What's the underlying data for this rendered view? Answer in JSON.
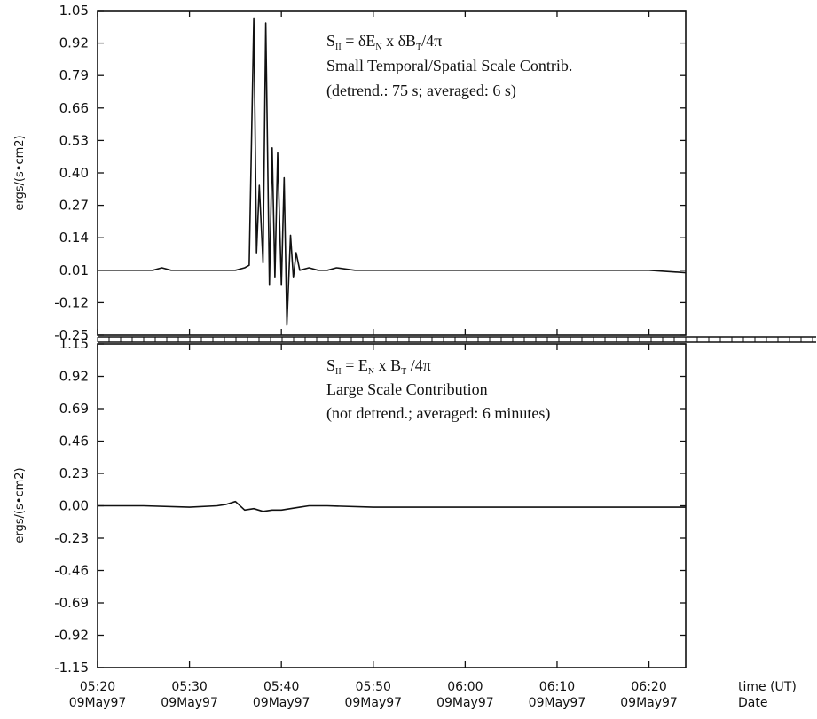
{
  "chart_data": [
    {
      "type": "line",
      "ylabel": "ergs/(s•cm2)",
      "ylim": [
        -0.25,
        1.05
      ],
      "yticks": [
        -0.25,
        -0.12,
        0.01,
        0.14,
        0.27,
        0.4,
        0.53,
        0.66,
        0.79,
        0.92,
        1.05
      ],
      "ytick_labels": [
        "-0.25",
        "-0.12",
        "0.01",
        "0.14",
        "0.27",
        "0.40",
        "0.53",
        "0.66",
        "0.79",
        "0.92",
        "1.05"
      ],
      "annotation": {
        "line1_main": "S",
        "line1_sub": "II",
        "line1_rest": " = δE",
        "line1_sub2": "N",
        "line1_rest2": " x δB",
        "line1_sub3": "T",
        "line1_end": "/4π",
        "line2": "Small Temporal/Spatial Scale Contrib.",
        "line3": "(detrend.: 75 s; averaged: 6 s)"
      },
      "series": [
        {
          "x": [
            "05:20",
            "05:22",
            "05:24",
            "05:26",
            "05:27",
            "05:28",
            "05:30",
            "05:32",
            "05:34",
            "05:35",
            "05:36",
            "05:36.5",
            "05:37",
            "05:37.3",
            "05:37.6",
            "05:38",
            "05:38.3",
            "05:38.7",
            "05:39",
            "05:39.3",
            "05:39.6",
            "05:40",
            "05:40.3",
            "05:40.6",
            "05:41",
            "05:41.3",
            "05:41.6",
            "05:42",
            "05:43",
            "05:44",
            "05:45",
            "05:46",
            "05:48",
            "05:50",
            "05:55",
            "06:00",
            "06:05",
            "06:10",
            "06:15",
            "06:20",
            "06:24"
          ],
          "values": [
            0.01,
            0.01,
            0.01,
            0.01,
            0.02,
            0.01,
            0.01,
            0.01,
            0.01,
            0.01,
            0.02,
            0.03,
            1.02,
            0.08,
            0.35,
            0.04,
            1.0,
            -0.05,
            0.5,
            -0.02,
            0.48,
            -0.05,
            0.38,
            -0.21,
            0.15,
            -0.02,
            0.08,
            0.01,
            0.02,
            0.01,
            0.01,
            0.02,
            0.01,
            0.01,
            0.01,
            0.01,
            0.01,
            0.01,
            0.01,
            0.01,
            0.0
          ]
        }
      ]
    },
    {
      "type": "line",
      "ylabel": "ergs/(s•cm2)",
      "ylim": [
        -1.15,
        1.15
      ],
      "yticks": [
        -1.15,
        -0.92,
        -0.69,
        -0.46,
        -0.23,
        0.0,
        0.23,
        0.46,
        0.69,
        0.92,
        1.15
      ],
      "ytick_labels": [
        "-1.15",
        "-0.92",
        "-0.69",
        "-0.46",
        "-0.23",
        "0.00",
        "0.23",
        "0.46",
        "0.69",
        "0.92",
        "1.15"
      ],
      "annotation": {
        "line1_main": "S",
        "line1_sub": "II",
        "line1_rest": " = E",
        "line1_sub2": "N",
        "line1_rest2": " x B",
        "line1_sub3": "T",
        "line1_end": " /4π",
        "line2": "Large Scale Contribution",
        "line3": "(not detrend.; averaged: 6 minutes)"
      },
      "series": [
        {
          "x": [
            "05:20",
            "05:25",
            "05:30",
            "05:33",
            "05:34",
            "05:35",
            "05:36",
            "05:37",
            "05:38",
            "05:39",
            "05:40",
            "05:41",
            "05:42",
            "05:43",
            "05:45",
            "05:50",
            "05:55",
            "06:00",
            "06:10",
            "06:20",
            "06:24"
          ],
          "values": [
            0.0,
            0.0,
            -0.01,
            0.0,
            0.01,
            0.03,
            -0.03,
            -0.02,
            -0.04,
            -0.03,
            -0.03,
            -0.02,
            -0.01,
            0.0,
            0.0,
            -0.01,
            -0.01,
            -0.01,
            -0.01,
            -0.01,
            -0.01
          ]
        }
      ]
    }
  ],
  "x_axis": {
    "xlim": [
      "05:20",
      "06:24"
    ],
    "ticks": [
      {
        "time": "05:20",
        "date": "09May97"
      },
      {
        "time": "05:30",
        "date": "09May97"
      },
      {
        "time": "05:40",
        "date": "09May97"
      },
      {
        "time": "05:50",
        "date": "09May97"
      },
      {
        "time": "06:00",
        "date": "09May97"
      },
      {
        "time": "06:10",
        "date": "09May97"
      },
      {
        "time": "06:20",
        "date": "09May97"
      }
    ],
    "label_time": "time (UT)",
    "label_date": "Date"
  }
}
